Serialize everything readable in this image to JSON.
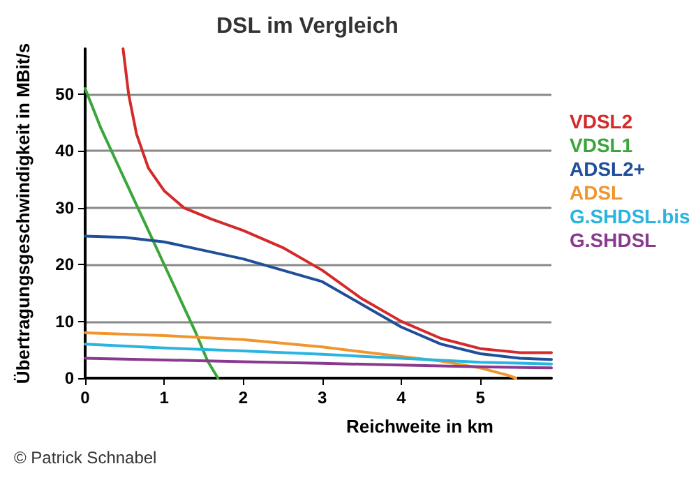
{
  "chart_data": {
    "type": "line",
    "title": "DSL im Vergleich",
    "xlabel": "Reichweite in km",
    "ylabel": "Übertragungsgeschwindigkeit in MBit/s",
    "annotations": [
      "© Patrick Schnabel"
    ],
    "xlim": [
      0,
      5.9
    ],
    "xticks": [
      0,
      1,
      2,
      3,
      4,
      5
    ],
    "ylim": [
      0,
      58
    ],
    "yticks": [
      0,
      10,
      20,
      30,
      40,
      50
    ],
    "grid": "y",
    "legend": "right",
    "marker": "none",
    "line_style": "solid",
    "series": [
      {
        "name": "VDSL2",
        "color": "#d42a2a",
        "x": [
          0.48,
          0.55,
          0.65,
          0.8,
          1.0,
          1.25,
          1.6,
          2,
          2.5,
          3,
          3.5,
          4,
          4.5,
          5,
          5.5,
          5.9
        ],
        "values": [
          58,
          50,
          43,
          37,
          33,
          30,
          28,
          26,
          23,
          19,
          14,
          10,
          7,
          5.2,
          4.5,
          4.5
        ]
      },
      {
        "name": "VDSL1",
        "color": "#3aa63a",
        "x": [
          0,
          0.2,
          0.4,
          0.6,
          0.8,
          1.0,
          1.2,
          1.4,
          1.55,
          1.68
        ],
        "values": [
          51,
          44,
          38,
          32,
          26,
          20,
          14,
          8,
          3,
          0
        ]
      },
      {
        "name": "ADSL2+",
        "color": "#1f4f9a",
        "x": [
          0,
          0.5,
          1,
          1.5,
          2,
          2.5,
          3,
          3.5,
          4,
          4.5,
          5,
          5.5,
          5.9
        ],
        "values": [
          25,
          24.8,
          24,
          22.5,
          21,
          19,
          17,
          13,
          9,
          6,
          4.3,
          3.5,
          3.3
        ]
      },
      {
        "name": "ADSL",
        "color": "#f0962e",
        "x": [
          0,
          1,
          2,
          3,
          4,
          4.5,
          5,
          5.35,
          5.45
        ],
        "values": [
          8,
          7.5,
          6.8,
          5.5,
          3.8,
          3,
          1.8,
          0.5,
          0
        ]
      },
      {
        "name": "G.SHDSL.bis",
        "color": "#2ab4e0",
        "x": [
          0,
          1,
          2,
          3,
          4,
          5,
          5.9
        ],
        "values": [
          6,
          5.3,
          4.8,
          4.2,
          3.5,
          2.8,
          2.5
        ]
      },
      {
        "name": "G.SHDSL",
        "color": "#8a3a8e",
        "x": [
          0,
          1,
          2,
          3,
          4,
          5,
          5.9
        ],
        "values": [
          3.5,
          3.2,
          2.9,
          2.6,
          2.3,
          2,
          1.8
        ]
      }
    ]
  }
}
